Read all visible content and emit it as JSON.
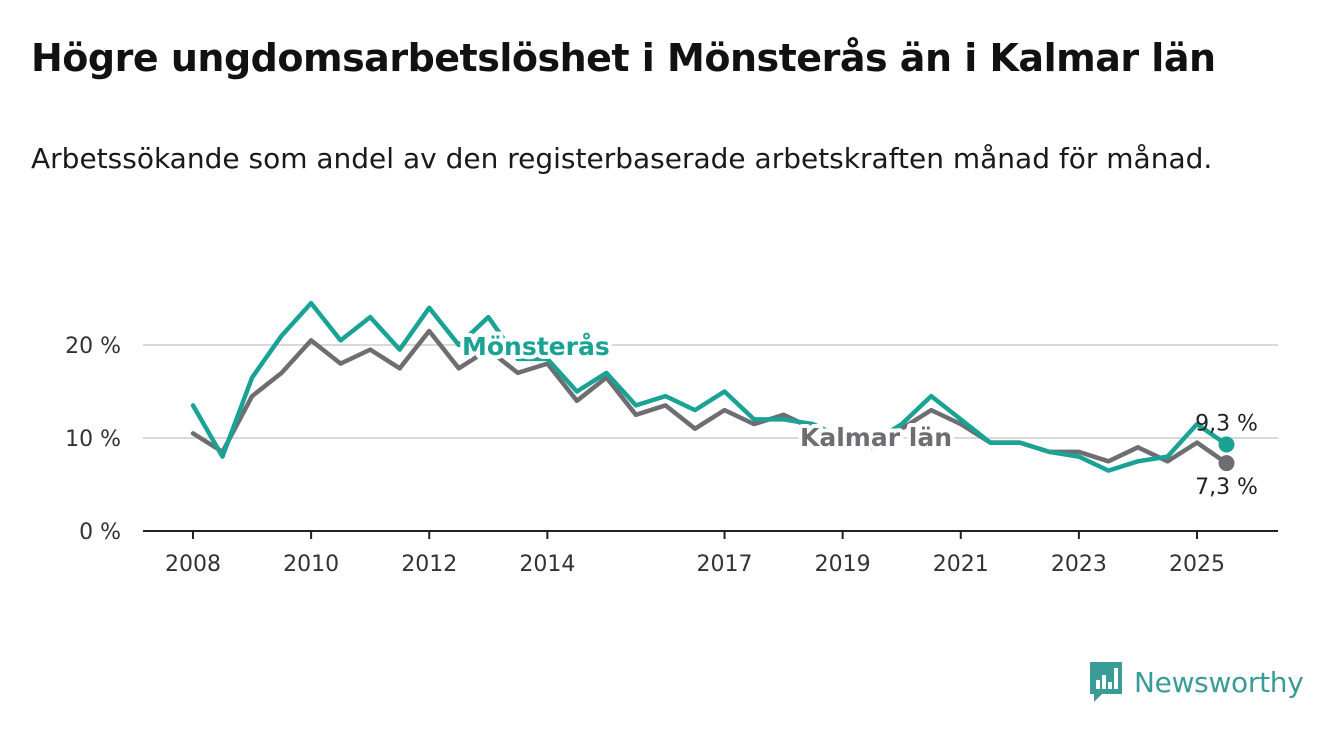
{
  "title": "Högre ungdomsarbetslöshet i Mönsterås än i Kalmar län",
  "subtitle": "Arbetssökande som andel av den registerbaserade arbetskraften månad för månad.",
  "brand": {
    "name": "Newsworthy",
    "icon": "newsworthy-logo-icon",
    "color": "#3a9c97"
  },
  "chart_data": {
    "type": "line",
    "xlabel": "",
    "ylabel": "",
    "x_ticks": [
      "2008",
      "2010",
      "2012",
      "2014",
      "2017",
      "2019",
      "2021",
      "2023",
      "2025"
    ],
    "y_ticks": [
      "0 %",
      "10 %",
      "20 %"
    ],
    "xlim": [
      "2008-01",
      "2025-12"
    ],
    "ylim": [
      0,
      27
    ],
    "grid": "horizontal",
    "legend": "inline labels",
    "x": [
      "2008-01",
      "2008-07",
      "2009-01",
      "2009-07",
      "2010-01",
      "2010-07",
      "2011-01",
      "2011-07",
      "2012-01",
      "2012-07",
      "2013-01",
      "2013-07",
      "2014-01",
      "2014-07",
      "2015-01",
      "2015-07",
      "2016-01",
      "2016-07",
      "2017-01",
      "2017-07",
      "2018-01",
      "2018-07",
      "2019-01",
      "2019-07",
      "2020-01",
      "2020-07",
      "2021-01",
      "2021-07",
      "2022-01",
      "2022-07",
      "2023-01",
      "2023-07",
      "2024-01",
      "2024-07",
      "2025-01",
      "2025-07"
    ],
    "series": [
      {
        "name": "Mönsterås",
        "color": "#1aa394",
        "end_label": "9,3 %",
        "values": [
          13.5,
          8.0,
          16.5,
          21.0,
          24.5,
          20.5,
          23.0,
          19.5,
          24.0,
          20.0,
          23.0,
          18.5,
          18.5,
          15.0,
          17.0,
          13.5,
          14.5,
          13.0,
          15.0,
          12.0,
          12.0,
          11.5,
          10.0,
          9.5,
          11.5,
          14.5,
          12.0,
          9.5,
          9.5,
          8.5,
          8.0,
          6.5,
          7.5,
          8.0,
          11.5,
          9.3
        ]
      },
      {
        "name": "Kalmar län",
        "color": "#6d6d72",
        "end_label": "7,3 %",
        "values": [
          10.5,
          8.5,
          14.5,
          17.0,
          20.5,
          18.0,
          19.5,
          17.5,
          21.5,
          17.5,
          19.5,
          17.0,
          18.0,
          14.0,
          16.5,
          12.5,
          13.5,
          11.0,
          13.0,
          11.5,
          12.5,
          11.0,
          9.5,
          9.0,
          11.0,
          13.0,
          11.5,
          9.5,
          9.5,
          8.5,
          8.5,
          7.5,
          9.0,
          7.5,
          9.5,
          7.3
        ]
      }
    ]
  }
}
